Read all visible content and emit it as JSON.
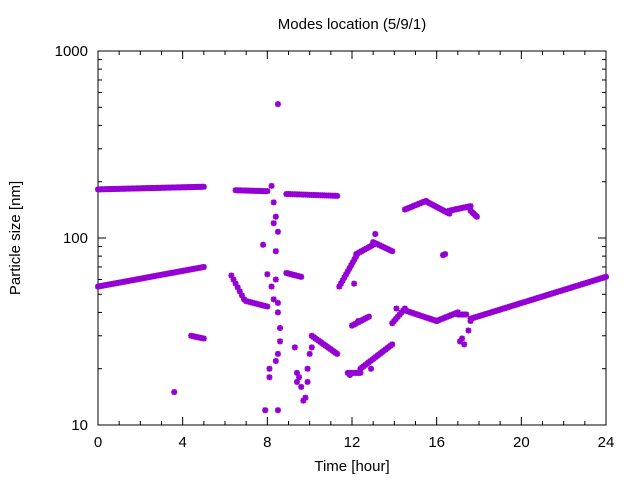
{
  "chart_data": {
    "type": "scatter",
    "title": "Modes location (5/9/1)",
    "xlabel": "Time [hour]",
    "ylabel": "Particle size [nm]",
    "xlim": [
      0,
      24
    ],
    "ylim": [
      10,
      1000
    ],
    "yscale": "log",
    "x_ticks": [
      0,
      4,
      8,
      12,
      16,
      20,
      24
    ],
    "x_tick_labels": [
      "0",
      "4",
      "8",
      "12",
      "16",
      "20",
      "24"
    ],
    "y_ticks": [
      10,
      100,
      1000
    ],
    "y_tick_labels": [
      "10",
      "100",
      "1000"
    ],
    "grid": false,
    "marker_color": "#9400D3",
    "series": [
      {
        "segments": [
          {
            "x0": 0.0,
            "x1": 5.0,
            "y0": 182,
            "y1": 188,
            "step": 0.08
          },
          {
            "x0": 6.5,
            "x1": 8.0,
            "y0": 180,
            "y1": 178,
            "step": 0.08
          },
          {
            "x0": 8.9,
            "x1": 11.3,
            "y0": 172,
            "y1": 168,
            "step": 0.1
          },
          {
            "x0": 0.0,
            "x1": 5.0,
            "y0": 55,
            "y1": 70,
            "step": 0.08
          },
          {
            "x0": 6.3,
            "x1": 6.9,
            "y0": 63,
            "y1": 47,
            "step": 0.1
          },
          {
            "x0": 7.0,
            "x1": 8.0,
            "y0": 46,
            "y1": 43,
            "step": 0.1
          },
          {
            "x0": 8.9,
            "x1": 9.6,
            "y0": 65,
            "y1": 62,
            "step": 0.08
          },
          {
            "x0": 10.1,
            "x1": 11.3,
            "y0": 30,
            "y1": 24,
            "step": 0.08
          },
          {
            "x0": 11.4,
            "x1": 12.2,
            "y0": 55,
            "y1": 80,
            "step": 0.08
          },
          {
            "x0": 12.2,
            "x1": 13.0,
            "y0": 82,
            "y1": 92,
            "step": 0.08
          },
          {
            "x0": 13.0,
            "x1": 13.9,
            "y0": 95,
            "y1": 85,
            "step": 0.1
          },
          {
            "x0": 11.8,
            "x1": 12.4,
            "y0": 19,
            "y1": 19,
            "step": 0.08
          },
          {
            "x0": 12.4,
            "x1": 13.9,
            "y0": 20,
            "y1": 27,
            "step": 0.08
          },
          {
            "x0": 12.0,
            "x1": 12.8,
            "y0": 34,
            "y1": 38,
            "step": 0.08
          },
          {
            "x0": 13.9,
            "x1": 14.5,
            "y0": 35,
            "y1": 42,
            "step": 0.08
          },
          {
            "x0": 14.5,
            "x1": 16.0,
            "y0": 41,
            "y1": 36,
            "step": 0.08
          },
          {
            "x0": 16.0,
            "x1": 17.0,
            "y0": 36,
            "y1": 40,
            "step": 0.08
          },
          {
            "x0": 17.0,
            "x1": 17.4,
            "y0": 39,
            "y1": 39,
            "step": 0.08
          },
          {
            "x0": 14.5,
            "x1": 15.5,
            "y0": 142,
            "y1": 158,
            "step": 0.08
          },
          {
            "x0": 15.5,
            "x1": 16.6,
            "y0": 157,
            "y1": 135,
            "step": 0.08
          },
          {
            "x0": 16.6,
            "x1": 17.6,
            "y0": 140,
            "y1": 148,
            "step": 0.08
          },
          {
            "x0": 17.6,
            "x1": 17.9,
            "y0": 140,
            "y1": 130,
            "step": 0.08
          },
          {
            "x0": 17.6,
            "x1": 24.0,
            "y0": 37,
            "y1": 62,
            "step": 0.08
          },
          {
            "x0": 4.4,
            "x1": 5.0,
            "y0": 30,
            "y1": 29,
            "step": 0.08
          }
        ],
        "points": [
          [
            3.6,
            15
          ],
          [
            8.5,
            520
          ],
          [
            7.9,
            12
          ],
          [
            8.5,
            12
          ],
          [
            7.8,
            92
          ],
          [
            8.4,
            85
          ],
          [
            8.0,
            64
          ],
          [
            8.2,
            55
          ],
          [
            8.3,
            47
          ],
          [
            8.4,
            60
          ],
          [
            8.5,
            45
          ],
          [
            8.2,
            190
          ],
          [
            8.3,
            155
          ],
          [
            8.4,
            130
          ],
          [
            8.5,
            108
          ],
          [
            8.3,
            120
          ],
          [
            8.1,
            20
          ],
          [
            8.1,
            18
          ],
          [
            8.4,
            22
          ],
          [
            8.5,
            24
          ],
          [
            8.6,
            28
          ],
          [
            8.5,
            40
          ],
          [
            8.6,
            33
          ],
          [
            9.3,
            26
          ],
          [
            9.4,
            19
          ],
          [
            9.4,
            17
          ],
          [
            9.5,
            18
          ],
          [
            9.6,
            16
          ],
          [
            9.8,
            14
          ],
          [
            9.7,
            13.5
          ],
          [
            9.9,
            20
          ],
          [
            9.9,
            17
          ],
          [
            10.0,
            24
          ],
          [
            10.1,
            26
          ],
          [
            12.1,
            57
          ],
          [
            12.3,
            36
          ],
          [
            13.1,
            105
          ],
          [
            14.1,
            42
          ],
          [
            16.4,
            82
          ],
          [
            16.3,
            81
          ],
          [
            17.1,
            28
          ],
          [
            17.3,
            27
          ],
          [
            17.2,
            29
          ],
          [
            17.5,
            32
          ],
          [
            17.6,
            36
          ],
          [
            12.9,
            20
          ],
          [
            11.9,
            18.5
          ]
        ]
      }
    ]
  }
}
